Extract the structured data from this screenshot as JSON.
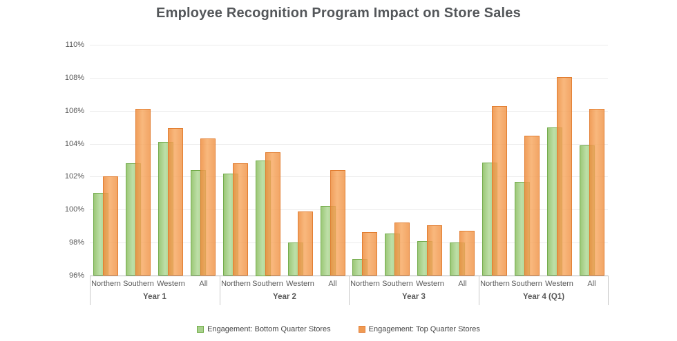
{
  "chart_data": {
    "type": "bar",
    "title": "Employee Recognition Program Impact on Store Sales",
    "groups": [
      "Year 1",
      "Year 2",
      "Year 3",
      "Year 4 (Q1)"
    ],
    "categories": [
      "Northern",
      "Southern",
      "Western",
      "All"
    ],
    "series": [
      {
        "name": "Engagement: Bottom Quarter Stores",
        "color": "#a9d18e",
        "border": "#71ad47",
        "values": [
          [
            101.0,
            102.8,
            104.1,
            102.4
          ],
          [
            102.2,
            103.0,
            98.0,
            100.2
          ],
          [
            97.0,
            98.55,
            98.1,
            98.0
          ],
          [
            102.85,
            101.7,
            105.0,
            103.9
          ]
        ]
      },
      {
        "name": "Engagement: Top Quarter Stores",
        "color": "#f09a52",
        "border": "#e2803a",
        "values": [
          [
            102.0,
            106.1,
            104.95,
            104.3
          ],
          [
            102.8,
            103.5,
            99.9,
            102.4
          ],
          [
            98.65,
            99.2,
            99.05,
            98.7
          ],
          [
            106.3,
            104.5,
            108.05,
            106.1
          ]
        ]
      }
    ],
    "ylim": [
      96,
      110
    ],
    "ytick_step": 2,
    "ytick_suffix": "%",
    "grid": true,
    "legend_position": "bottom"
  }
}
